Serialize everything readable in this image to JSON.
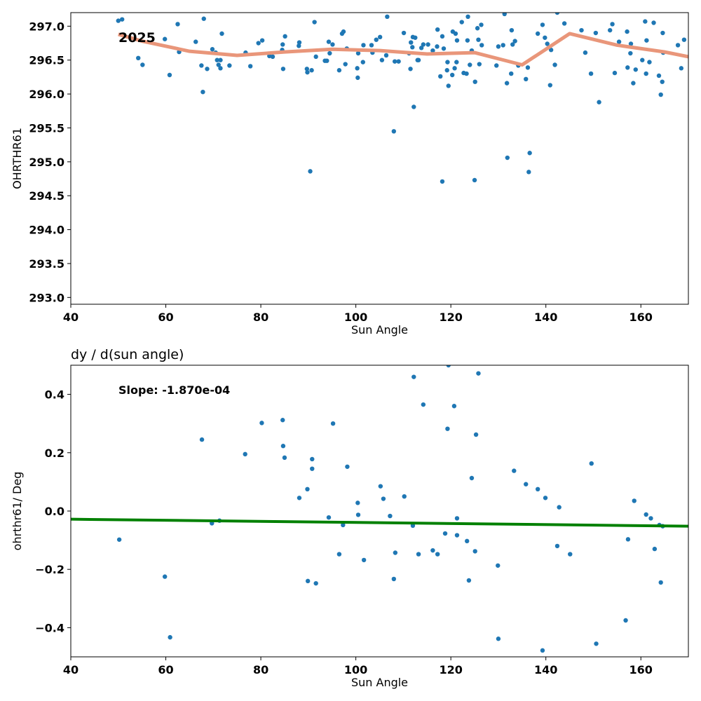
{
  "chart_data": [
    {
      "type": "scatter",
      "title": "",
      "xlabel": "Sun Angle",
      "ylabel": "OHRTHR61",
      "xlim": [
        40,
        170
      ],
      "ylim": [
        292.9,
        297.2
      ],
      "xticks": [
        "40",
        "60",
        "80",
        "100",
        "120",
        "140",
        "160"
      ],
      "yticks": [
        "293.0",
        "293.5",
        "294.0",
        "294.5",
        "295.0",
        "295.5",
        "296.0",
        "296.5",
        "297.0"
      ],
      "annotation": "2025",
      "grid": false,
      "colors": {
        "points": "#1f77b4",
        "trend": "#e9967a"
      },
      "points": [
        [
          50,
          297.08
        ],
        [
          50.8,
          297.1
        ],
        [
          54.2,
          296.53
        ],
        [
          55.1,
          296.43
        ],
        [
          59.8,
          296.81
        ],
        [
          60.8,
          296.28
        ],
        [
          62.5,
          297.03
        ],
        [
          62.8,
          296.62
        ],
        [
          66.3,
          296.77
        ],
        [
          67.5,
          296.42
        ],
        [
          67.8,
          296.03
        ],
        [
          68,
          297.11
        ],
        [
          68.7,
          296.37
        ],
        [
          69.8,
          296.66
        ],
        [
          70.5,
          296.61
        ],
        [
          70.8,
          296.5
        ],
        [
          71.1,
          296.43
        ],
        [
          71.5,
          296.38
        ],
        [
          71.5,
          296.5
        ],
        [
          71.8,
          296.89
        ],
        [
          73.4,
          296.42
        ],
        [
          76.8,
          296.61
        ],
        [
          77.8,
          296.41
        ],
        [
          79.5,
          296.75
        ],
        [
          80.3,
          296.79
        ],
        [
          81.8,
          296.56
        ],
        [
          82.5,
          296.55
        ],
        [
          84.5,
          296.65
        ],
        [
          84.6,
          296.73
        ],
        [
          84.7,
          296.37
        ],
        [
          85.1,
          296.85
        ],
        [
          88,
          296.71
        ],
        [
          88.1,
          296.76
        ],
        [
          89.7,
          296.37
        ],
        [
          89.8,
          296.32
        ],
        [
          90.4,
          294.86
        ],
        [
          90.7,
          296.35
        ],
        [
          91.3,
          297.06
        ],
        [
          91.6,
          296.55
        ],
        [
          93.5,
          296.49
        ],
        [
          93.9,
          296.49
        ],
        [
          94.3,
          296.77
        ],
        [
          94.5,
          296.6
        ],
        [
          95.1,
          296.73
        ],
        [
          96.5,
          296.35
        ],
        [
          97.1,
          296.89
        ],
        [
          97.4,
          296.92
        ],
        [
          97.8,
          296.44
        ],
        [
          98.1,
          296.67
        ],
        [
          100.3,
          296.38
        ],
        [
          100.4,
          296.24
        ],
        [
          100.5,
          296.6
        ],
        [
          101.5,
          296.47
        ],
        [
          101.6,
          296.72
        ],
        [
          103.3,
          296.72
        ],
        [
          103.5,
          296.61
        ],
        [
          104.3,
          296.8
        ],
        [
          105.1,
          296.84
        ],
        [
          105.5,
          296.5
        ],
        [
          106.4,
          296.57
        ],
        [
          106.6,
          297.14
        ],
        [
          108,
          295.45
        ],
        [
          108.2,
          296.48
        ],
        [
          109,
          296.48
        ],
        [
          110.1,
          296.9
        ],
        [
          111.2,
          296.6
        ],
        [
          111.5,
          296.37
        ],
        [
          111.6,
          296.76
        ],
        [
          111.9,
          296.69
        ],
        [
          112,
          296.84
        ],
        [
          112.2,
          295.81
        ],
        [
          112.5,
          296.83
        ],
        [
          113,
          296.5
        ],
        [
          113.2,
          296.5
        ],
        [
          113.8,
          296.68
        ],
        [
          114.2,
          296.73
        ],
        [
          115.2,
          296.73
        ],
        [
          116.2,
          296.64
        ],
        [
          117.1,
          296.7
        ],
        [
          117.2,
          296.95
        ],
        [
          117.8,
          296.26
        ],
        [
          118.2,
          294.71
        ],
        [
          118.2,
          296.85
        ],
        [
          118.5,
          296.67
        ],
        [
          119.2,
          296.35
        ],
        [
          119.3,
          296.47
        ],
        [
          119.5,
          296.12
        ],
        [
          120.3,
          296.28
        ],
        [
          120.4,
          296.92
        ],
        [
          120.8,
          296.38
        ],
        [
          121,
          296.89
        ],
        [
          121.2,
          296.47
        ],
        [
          121.3,
          296.79
        ],
        [
          122.3,
          297.06
        ],
        [
          122.7,
          296.31
        ],
        [
          123.3,
          296.3
        ],
        [
          123.5,
          296.79
        ],
        [
          123.6,
          297.14
        ],
        [
          124,
          296.43
        ],
        [
          124.4,
          296.64
        ],
        [
          125,
          294.73
        ],
        [
          125.1,
          296.18
        ],
        [
          125.6,
          296.97
        ],
        [
          125.8,
          296.8
        ],
        [
          126,
          296.44
        ],
        [
          126.4,
          297.02
        ],
        [
          126.5,
          296.72
        ],
        [
          129.6,
          296.42
        ],
        [
          130,
          296.7
        ],
        [
          131,
          296.72
        ],
        [
          131.3,
          297.18
        ],
        [
          131.8,
          296.16
        ],
        [
          131.9,
          295.06
        ],
        [
          132.7,
          296.3
        ],
        [
          132.8,
          296.94
        ],
        [
          133,
          296.73
        ],
        [
          133.5,
          296.78
        ],
        [
          134.2,
          296.42
        ],
        [
          135.8,
          296.22
        ],
        [
          136.2,
          296.39
        ],
        [
          136.4,
          294.85
        ],
        [
          136.6,
          295.13
        ],
        [
          138.3,
          296.89
        ],
        [
          139.3,
          297.02
        ],
        [
          139.8,
          296.83
        ],
        [
          140.3,
          296.74
        ],
        [
          140.9,
          296.13
        ],
        [
          141.1,
          296.65
        ],
        [
          141.9,
          296.43
        ],
        [
          142.4,
          297.2
        ],
        [
          143.9,
          297.04
        ],
        [
          147.5,
          296.94
        ],
        [
          148.3,
          296.61
        ],
        [
          149.5,
          296.3
        ],
        [
          150.5,
          296.9
        ],
        [
          151.2,
          295.88
        ],
        [
          153.5,
          296.94
        ],
        [
          154,
          297.03
        ],
        [
          154.5,
          296.31
        ],
        [
          155.4,
          296.77
        ],
        [
          157.1,
          296.92
        ],
        [
          157.2,
          296.39
        ],
        [
          157.8,
          296.6
        ],
        [
          157.9,
          296.74
        ],
        [
          158.4,
          296.16
        ],
        [
          158.9,
          296.36
        ],
        [
          160.3,
          296.5
        ],
        [
          160.9,
          297.07
        ],
        [
          161.1,
          296.3
        ],
        [
          161.2,
          296.79
        ],
        [
          161.8,
          296.47
        ],
        [
          162.7,
          297.05
        ],
        [
          163.8,
          296.27
        ],
        [
          164.2,
          295.99
        ],
        [
          164.5,
          296.18
        ],
        [
          164.6,
          296.9
        ],
        [
          164.7,
          296.61
        ],
        [
          167.8,
          296.72
        ],
        [
          168.5,
          296.38
        ],
        [
          169.1,
          296.8
        ]
      ],
      "trend_line": [
        [
          50,
          296.88
        ],
        [
          55,
          296.78
        ],
        [
          65,
          296.63
        ],
        [
          75,
          296.57
        ],
        [
          85,
          296.62
        ],
        [
          95,
          296.66
        ],
        [
          105,
          296.64
        ],
        [
          115,
          296.59
        ],
        [
          125,
          296.61
        ],
        [
          135,
          296.43
        ],
        [
          145,
          296.89
        ],
        [
          155,
          296.72
        ],
        [
          165,
          296.62
        ],
        [
          170,
          296.55
        ]
      ]
    },
    {
      "type": "scatter",
      "title": "dy / d(sun angle)",
      "xlabel": "Sun Angle",
      "ylabel": "ohrthr61/ Deg",
      "xlim": [
        40,
        170
      ],
      "ylim": [
        -0.5,
        0.5
      ],
      "xticks": [
        "40",
        "60",
        "80",
        "100",
        "120",
        "140",
        "160"
      ],
      "yticks": [
        "−0.4",
        "−0.2",
        "0.0",
        "0.2",
        "0.4"
      ],
      "annotation": "Slope: -1.870e-04",
      "grid": false,
      "colors": {
        "points": "#1f77b4",
        "fit": "#008000"
      },
      "points": [
        [
          50.2,
          -0.098
        ],
        [
          59.8,
          -0.225
        ],
        [
          60.9,
          -0.433
        ],
        [
          67.6,
          0.245
        ],
        [
          69.7,
          -0.042
        ],
        [
          71.3,
          -0.033
        ],
        [
          76.7,
          0.195
        ],
        [
          80.2,
          0.302
        ],
        [
          84.6,
          0.312
        ],
        [
          84.7,
          0.223
        ],
        [
          85,
          0.183
        ],
        [
          88.1,
          0.045
        ],
        [
          89.8,
          0.075
        ],
        [
          89.9,
          -0.24
        ],
        [
          90.8,
          0.145
        ],
        [
          90.8,
          0.178
        ],
        [
          91.6,
          -0.248
        ],
        [
          94.3,
          -0.022
        ],
        [
          95.2,
          0.3
        ],
        [
          96.5,
          -0.148
        ],
        [
          97.3,
          -0.048
        ],
        [
          98.2,
          0.152
        ],
        [
          100.4,
          0.028
        ],
        [
          100.5,
          -0.013
        ],
        [
          101.7,
          -0.168
        ],
        [
          105.2,
          0.085
        ],
        [
          105.8,
          0.042
        ],
        [
          107.2,
          -0.017
        ],
        [
          108,
          -0.233
        ],
        [
          108.3,
          -0.143
        ],
        [
          110.2,
          0.05
        ],
        [
          112,
          -0.05
        ],
        [
          112.2,
          0.46
        ],
        [
          113.2,
          -0.148
        ],
        [
          114.2,
          0.365
        ],
        [
          116.2,
          -0.135
        ],
        [
          117.2,
          -0.148
        ],
        [
          118.8,
          -0.077
        ],
        [
          119.3,
          0.282
        ],
        [
          119.5,
          0.5
        ],
        [
          120.7,
          0.36
        ],
        [
          121.3,
          -0.025
        ],
        [
          121.3,
          -0.083
        ],
        [
          123.4,
          -0.103
        ],
        [
          123.8,
          -0.238
        ],
        [
          124.4,
          0.113
        ],
        [
          125.1,
          -0.138
        ],
        [
          125.3,
          0.262
        ],
        [
          125.8,
          0.472
        ],
        [
          129.9,
          -0.187
        ],
        [
          130,
          -0.438
        ],
        [
          133.3,
          0.138
        ],
        [
          135.8,
          0.092
        ],
        [
          138.3,
          0.075
        ],
        [
          139.3,
          -0.478
        ],
        [
          139.9,
          0.045
        ],
        [
          142.4,
          -0.12
        ],
        [
          142.8,
          0.013
        ],
        [
          145.1,
          -0.148
        ],
        [
          149.6,
          0.163
        ],
        [
          150.6,
          -0.455
        ],
        [
          156.8,
          -0.375
        ],
        [
          157.3,
          -0.097
        ],
        [
          158.6,
          0.035
        ],
        [
          161.1,
          -0.012
        ],
        [
          162.1,
          -0.025
        ],
        [
          162.9,
          -0.13
        ],
        [
          163.9,
          -0.048
        ],
        [
          164.2,
          -0.245
        ],
        [
          164.6,
          -0.052
        ]
      ],
      "fit_line": [
        [
          40,
          -0.028
        ],
        [
          170,
          -0.052
        ]
      ]
    }
  ]
}
